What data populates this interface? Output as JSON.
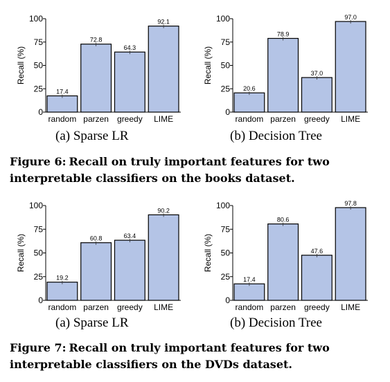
{
  "chart_data": [
    {
      "type": "bar",
      "categories": [
        "random",
        "parzen",
        "greedy",
        "LIME"
      ],
      "values": [
        17.4,
        72.8,
        64.3,
        92.1
      ],
      "value_labels": [
        "17.4",
        "72.8",
        "64.3",
        "92.1"
      ],
      "ylabel": "Recall (%)",
      "ylim": [
        0,
        100
      ],
      "yticks": [
        "0",
        "25",
        "50",
        "75",
        "100"
      ],
      "subcaption": "(a) Sparse LR",
      "bar_color": "#b4c4e6"
    },
    {
      "type": "bar",
      "categories": [
        "random",
        "parzen",
        "greedy",
        "LIME"
      ],
      "values": [
        20.6,
        78.9,
        37.0,
        97.0
      ],
      "value_labels": [
        "20.6",
        "78.9",
        "37.0",
        "97.0"
      ],
      "ylabel": "Recall (%)",
      "ylim": [
        0,
        100
      ],
      "yticks": [
        "0",
        "25",
        "50",
        "75",
        "100"
      ],
      "subcaption": "(b) Decision Tree",
      "bar_color": "#b4c4e6"
    },
    {
      "type": "bar",
      "categories": [
        "random",
        "parzen",
        "greedy",
        "LIME"
      ],
      "values": [
        19.2,
        60.8,
        63.4,
        90.2
      ],
      "value_labels": [
        "19.2",
        "60.8",
        "63.4",
        "90.2"
      ],
      "ylabel": "Recall (%)",
      "ylim": [
        0,
        100
      ],
      "yticks": [
        "0",
        "25",
        "50",
        "75",
        "100"
      ],
      "subcaption": "(a) Sparse LR",
      "bar_color": "#b4c4e6"
    },
    {
      "type": "bar",
      "categories": [
        "random",
        "parzen",
        "greedy",
        "LIME"
      ],
      "values": [
        17.4,
        80.6,
        47.6,
        97.8
      ],
      "value_labels": [
        "17.4",
        "80.6",
        "47.6",
        "97.8"
      ],
      "ylabel": "Recall (%)",
      "ylim": [
        0,
        100
      ],
      "yticks": [
        "0",
        "25",
        "50",
        "75",
        "100"
      ],
      "subcaption": "(b) Decision Tree",
      "bar_color": "#b4c4e6"
    }
  ],
  "captions": {
    "fig6": {
      "label": "Figure 6:",
      "text": "Recall on truly important features for two interpretable classifiers on the books dataset."
    },
    "fig7": {
      "label": "Figure 7:",
      "text": "Recall on truly important features for two interpretable classifiers on the DVDs dataset."
    }
  }
}
